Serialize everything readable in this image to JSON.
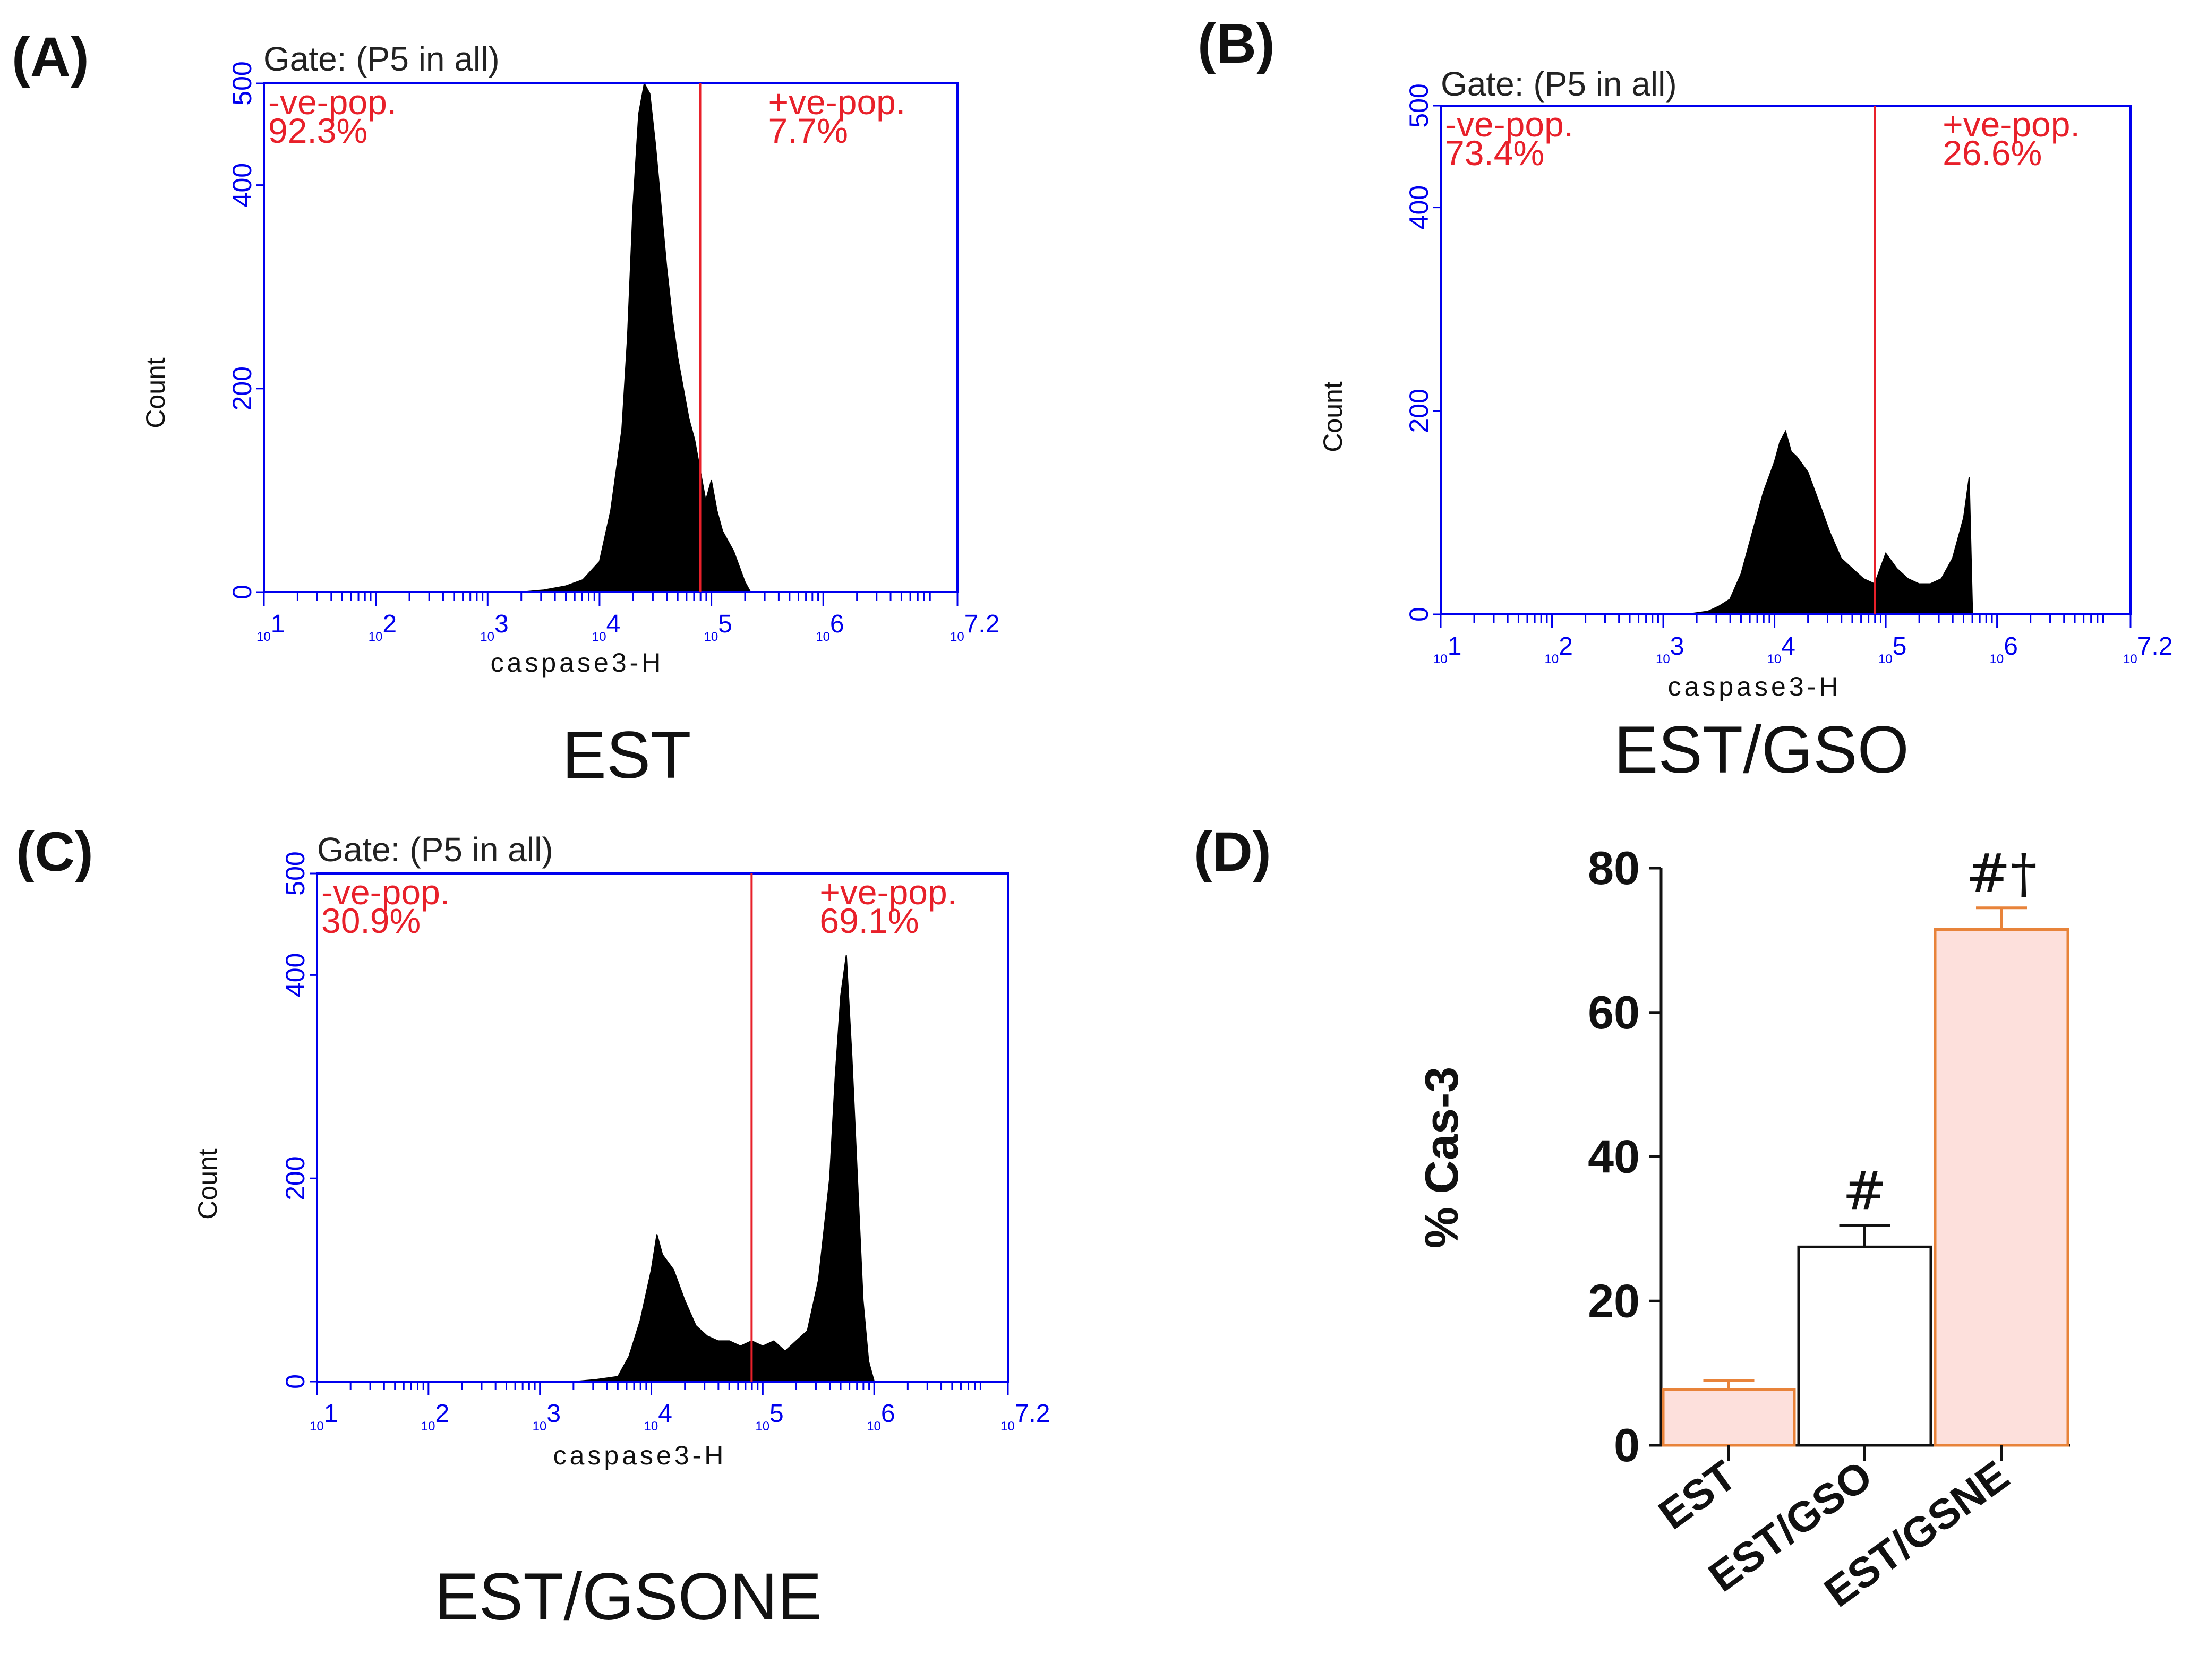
{
  "colors": {
    "frame": "#0000ee",
    "gate_line": "#e8202a",
    "population_text": "#e8202a",
    "histogram_fill": "#000000",
    "bar_pink_fill": "#fde0dc",
    "bar_orange_stroke": "#e8833a",
    "bar_white_fill": "#ffffff",
    "bar_black_stroke": "#111111"
  },
  "chart_data": [
    {
      "type": "area",
      "panel": "(A)",
      "caption": "EST",
      "gate_label": "Gate: (P5 in all)",
      "xlabel": "caspase3-H",
      "ylabel": "Count",
      "x_scale": "log10",
      "xlim": [
        1,
        7.2
      ],
      "ylim": [
        0,
        500
      ],
      "y_ticks": [
        0,
        200,
        400,
        500
      ],
      "x_ticks": [
        {
          "base": "10",
          "exp": "1"
        },
        {
          "base": "10",
          "exp": "2"
        },
        {
          "base": "10",
          "exp": "3"
        },
        {
          "base": "10",
          "exp": "4"
        },
        {
          "base": "10",
          "exp": "5"
        },
        {
          "base": "10",
          "exp": "6"
        },
        {
          "base": "10",
          "exp": "7.2"
        }
      ],
      "gate_log10": 4.9,
      "neg_label": "-ve-pop.",
      "neg_value": "92.3%",
      "pos_label": "+ve-pop.",
      "pos_value": "7.7%",
      "histogram": [
        [
          3.3,
          0
        ],
        [
          3.5,
          2
        ],
        [
          3.7,
          6
        ],
        [
          3.85,
          12
        ],
        [
          4.0,
          30
        ],
        [
          4.1,
          80
        ],
        [
          4.2,
          160
        ],
        [
          4.25,
          250
        ],
        [
          4.3,
          380
        ],
        [
          4.35,
          470
        ],
        [
          4.4,
          500
        ],
        [
          4.45,
          490
        ],
        [
          4.5,
          440
        ],
        [
          4.55,
          380
        ],
        [
          4.6,
          320
        ],
        [
          4.65,
          270
        ],
        [
          4.7,
          230
        ],
        [
          4.75,
          200
        ],
        [
          4.8,
          170
        ],
        [
          4.85,
          150
        ],
        [
          4.9,
          120
        ],
        [
          4.95,
          90
        ],
        [
          5.0,
          110
        ],
        [
          5.05,
          80
        ],
        [
          5.1,
          60
        ],
        [
          5.2,
          40
        ],
        [
          5.3,
          10
        ],
        [
          5.35,
          0
        ]
      ]
    },
    {
      "type": "area",
      "panel": "(B)",
      "caption": "EST/GSO",
      "gate_label": "Gate: (P5 in all)",
      "xlabel": "caspase3-H",
      "ylabel": "Count",
      "x_scale": "log10",
      "xlim": [
        1,
        7.2
      ],
      "ylim": [
        0,
        500
      ],
      "y_ticks": [
        0,
        200,
        400,
        500
      ],
      "x_ticks": [
        {
          "base": "10",
          "exp": "1"
        },
        {
          "base": "10",
          "exp": "2"
        },
        {
          "base": "10",
          "exp": "3"
        },
        {
          "base": "10",
          "exp": "4"
        },
        {
          "base": "10",
          "exp": "5"
        },
        {
          "base": "10",
          "exp": "6"
        },
        {
          "base": "10",
          "exp": "7.2"
        }
      ],
      "gate_log10": 4.9,
      "neg_label": "-ve-pop.",
      "neg_value": "73.4%",
      "pos_label": "+ve-pop.",
      "pos_value": "26.6%",
      "histogram": [
        [
          3.2,
          0
        ],
        [
          3.4,
          3
        ],
        [
          3.5,
          8
        ],
        [
          3.6,
          15
        ],
        [
          3.7,
          40
        ],
        [
          3.8,
          80
        ],
        [
          3.9,
          120
        ],
        [
          4.0,
          150
        ],
        [
          4.05,
          170
        ],
        [
          4.1,
          180
        ],
        [
          4.15,
          160
        ],
        [
          4.2,
          155
        ],
        [
          4.3,
          140
        ],
        [
          4.4,
          110
        ],
        [
          4.5,
          80
        ],
        [
          4.6,
          55
        ],
        [
          4.7,
          45
        ],
        [
          4.8,
          35
        ],
        [
          4.9,
          30
        ],
        [
          5.0,
          60
        ],
        [
          5.1,
          45
        ],
        [
          5.2,
          35
        ],
        [
          5.3,
          30
        ],
        [
          5.4,
          30
        ],
        [
          5.5,
          35
        ],
        [
          5.6,
          55
        ],
        [
          5.7,
          95
        ],
        [
          5.75,
          135
        ],
        [
          5.78,
          0
        ]
      ]
    },
    {
      "type": "area",
      "panel": "(C)",
      "caption": "EST/GSONE",
      "gate_label": "Gate: (P5 in all)",
      "xlabel": "caspase3-H",
      "ylabel": "Count",
      "x_scale": "log10",
      "xlim": [
        1,
        7.2
      ],
      "ylim": [
        0,
        500
      ],
      "y_ticks": [
        0,
        200,
        400,
        500
      ],
      "x_ticks": [
        {
          "base": "10",
          "exp": "1"
        },
        {
          "base": "10",
          "exp": "2"
        },
        {
          "base": "10",
          "exp": "3"
        },
        {
          "base": "10",
          "exp": "4"
        },
        {
          "base": "10",
          "exp": "5"
        },
        {
          "base": "10",
          "exp": "6"
        },
        {
          "base": "10",
          "exp": "7.2"
        }
      ],
      "gate_log10": 4.9,
      "neg_label": "-ve-pop.",
      "neg_value": "30.9%",
      "pos_label": "+ve-pop.",
      "pos_value": "69.1%",
      "histogram": [
        [
          3.3,
          0
        ],
        [
          3.5,
          2
        ],
        [
          3.7,
          5
        ],
        [
          3.8,
          25
        ],
        [
          3.9,
          60
        ],
        [
          4.0,
          110
        ],
        [
          4.05,
          145
        ],
        [
          4.1,
          125
        ],
        [
          4.2,
          110
        ],
        [
          4.3,
          80
        ],
        [
          4.4,
          55
        ],
        [
          4.5,
          45
        ],
        [
          4.6,
          40
        ],
        [
          4.7,
          40
        ],
        [
          4.8,
          35
        ],
        [
          4.9,
          40
        ],
        [
          5.0,
          35
        ],
        [
          5.1,
          40
        ],
        [
          5.2,
          30
        ],
        [
          5.3,
          40
        ],
        [
          5.4,
          50
        ],
        [
          5.5,
          100
        ],
        [
          5.6,
          200
        ],
        [
          5.65,
          300
        ],
        [
          5.7,
          380
        ],
        [
          5.75,
          420
        ],
        [
          5.8,
          320
        ],
        [
          5.85,
          200
        ],
        [
          5.9,
          80
        ],
        [
          5.95,
          20
        ],
        [
          6.0,
          0
        ]
      ]
    },
    {
      "type": "bar",
      "panel": "(D)",
      "ylabel": "% Cas-3",
      "ylim": [
        0,
        80
      ],
      "y_ticks": [
        0,
        20,
        40,
        60,
        80
      ],
      "categories": [
        "EST",
        "EST/GSO",
        "EST/GSNE"
      ],
      "values": [
        7.7,
        27.5,
        71.5
      ],
      "errors": [
        1.3,
        3.0,
        3.0
      ],
      "annotations": [
        "",
        "#",
        "#†"
      ]
    }
  ]
}
